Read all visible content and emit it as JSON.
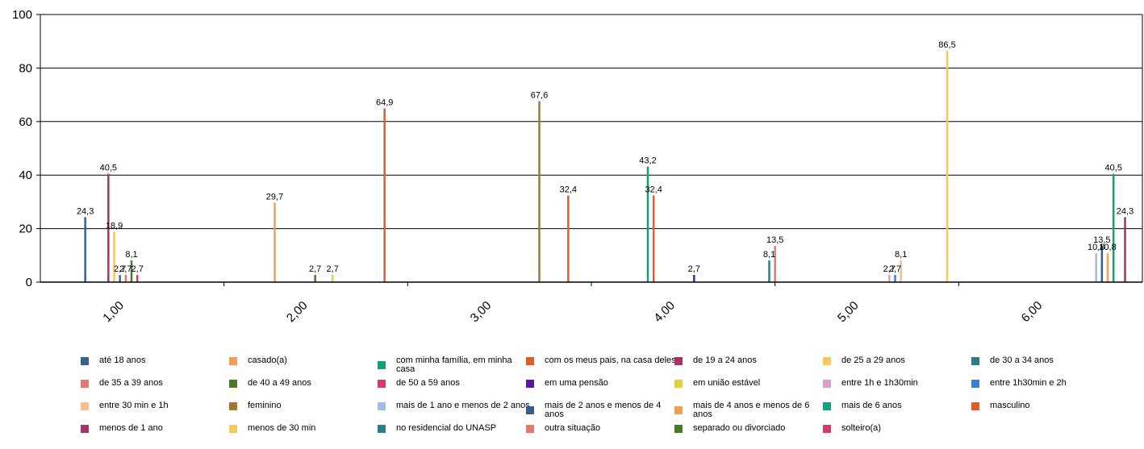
{
  "chart_data": {
    "type": "bar",
    "title": "",
    "xlabel": "",
    "ylabel": "",
    "ylim": [
      0,
      100
    ],
    "yticks": [
      "0",
      "20",
      "40",
      "60",
      "80",
      "100"
    ],
    "categories": [
      "1,00",
      "2,00",
      "3,00",
      "4,00",
      "5,00",
      "6,00"
    ],
    "legend_position": "bottom",
    "grid": "horizontal",
    "series": [
      {
        "name": "até 18 anos",
        "color": "#3a5f91",
        "values": [
          24.3,
          null,
          null,
          null,
          null,
          null
        ],
        "labels": [
          "24,3",
          null,
          null,
          null,
          null,
          null
        ]
      },
      {
        "name": "casado(a)",
        "color": "#f0a050",
        "values": [
          null,
          29.7,
          null,
          null,
          null,
          null
        ],
        "labels": [
          null,
          "29,7",
          null,
          null,
          null,
          null
        ]
      },
      {
        "name": "com minha família, em minha casa",
        "color": "#12a07a",
        "values": [
          null,
          null,
          null,
          43.2,
          null,
          null
        ],
        "labels": [
          null,
          null,
          null,
          "43,2",
          null,
          null
        ]
      },
      {
        "name": "com os meus pais, na casa deles",
        "color": "#e05c28",
        "values": [
          null,
          null,
          null,
          32.4,
          null,
          null
        ],
        "labels": [
          null,
          null,
          null,
          "32,4",
          null,
          null
        ]
      },
      {
        "name": "de 19 a 24 anos",
        "color": "#a83268",
        "values": [
          40.5,
          null,
          null,
          null,
          null,
          null
        ],
        "labels": [
          "40,5",
          null,
          null,
          null,
          null,
          null
        ]
      },
      {
        "name": "de 25 a 29 anos",
        "color": "#f7c85a",
        "values": [
          18.9,
          null,
          null,
          null,
          null,
          null
        ],
        "labels": [
          "18,9",
          null,
          null,
          null,
          null,
          null
        ]
      },
      {
        "name": "de 30 a 34 anos",
        "color": "#2d7a88",
        "values": [
          2.7,
          null,
          null,
          null,
          null,
          null
        ],
        "labels": [
          "2,7",
          null,
          null,
          null,
          null,
          null
        ]
      },
      {
        "name": "de 35 a 39 anos",
        "color": "#e07a70",
        "values": [
          2.7,
          null,
          null,
          null,
          null,
          null
        ],
        "labels": [
          "2,7",
          null,
          null,
          null,
          null,
          null
        ]
      },
      {
        "name": "de 40 a 49 anos",
        "color": "#4a7a28",
        "values": [
          8.1,
          2.7,
          null,
          null,
          null,
          null
        ],
        "labels": [
          "8,1",
          "2,7",
          null,
          null,
          null,
          null
        ]
      },
      {
        "name": "de 50 a 59 anos",
        "color": "#d63a70",
        "values": [
          2.7,
          null,
          null,
          null,
          null,
          null
        ],
        "labels": [
          "2,7",
          null,
          null,
          null,
          null,
          null
        ]
      },
      {
        "name": "em uma pensão",
        "color": "#5a1aa0",
        "values": [
          null,
          null,
          null,
          2.7,
          null,
          null
        ],
        "labels": [
          null,
          null,
          null,
          "2,7",
          null,
          null
        ]
      },
      {
        "name": "em união estável",
        "color": "#e0d040",
        "values": [
          null,
          2.7,
          null,
          null,
          null,
          null
        ],
        "labels": [
          null,
          "2,7",
          null,
          null,
          null,
          null
        ]
      },
      {
        "name": "entre 1h e 1h30min",
        "color": "#d8a0c8",
        "values": [
          null,
          null,
          null,
          null,
          2.7,
          null
        ],
        "labels": [
          null,
          null,
          null,
          null,
          "2,7",
          null
        ]
      },
      {
        "name": "entre 1h30min e 2h",
        "color": "#3a80d0",
        "values": [
          null,
          null,
          null,
          null,
          2.7,
          null
        ],
        "labels": [
          null,
          null,
          null,
          null,
          "2,7",
          null
        ]
      },
      {
        "name": "entre 30 min e 1h",
        "color": "#f0c090",
        "values": [
          null,
          null,
          null,
          null,
          8.1,
          null
        ],
        "labels": [
          null,
          null,
          null,
          null,
          "8,1",
          null
        ]
      },
      {
        "name": "feminino",
        "color": "#a07830",
        "values": [
          null,
          null,
          67.6,
          null,
          null,
          null
        ],
        "labels": [
          null,
          null,
          "67,6",
          null,
          null,
          null
        ]
      },
      {
        "name": "mais de 1 ano e menos de 2 anos",
        "color": "#a0bce0",
        "values": [
          null,
          null,
          null,
          null,
          null,
          10.8
        ],
        "labels": [
          null,
          null,
          null,
          null,
          null,
          "10,8"
        ]
      },
      {
        "name": "mais de 2 anos e menos de 4 anos",
        "color": "#3a5a90",
        "values": [
          null,
          null,
          null,
          null,
          null,
          13.5
        ],
        "labels": [
          null,
          null,
          null,
          null,
          null,
          "13,5"
        ]
      },
      {
        "name": "mais de 4 anos e menos de 6 anos",
        "color": "#f0a050",
        "values": [
          null,
          null,
          null,
          null,
          null,
          10.8
        ],
        "labels": [
          null,
          null,
          null,
          null,
          null,
          "10,8"
        ]
      },
      {
        "name": "mais de 6 anos",
        "color": "#12a07a",
        "values": [
          null,
          null,
          null,
          null,
          null,
          40.5
        ],
        "labels": [
          null,
          null,
          null,
          null,
          null,
          "40,5"
        ]
      },
      {
        "name": "masculino",
        "color": "#e05c28",
        "values": [
          null,
          64.9,
          32.4,
          null,
          null,
          null
        ],
        "labels": [
          null,
          "64,9",
          "32,4",
          null,
          null,
          null
        ]
      },
      {
        "name": "menos de 1 ano",
        "color": "#a83268",
        "values": [
          null,
          null,
          null,
          null,
          null,
          24.3
        ],
        "labels": [
          null,
          null,
          null,
          null,
          null,
          "24,3"
        ]
      },
      {
        "name": "menos de 30 min",
        "color": "#f7c85a",
        "values": [
          null,
          null,
          null,
          null,
          86.5,
          null
        ],
        "labels": [
          null,
          null,
          null,
          null,
          "86,5",
          null
        ]
      },
      {
        "name": "no residencial do UNASP",
        "color": "#2d7a88",
        "values": [
          null,
          null,
          null,
          8.1,
          null,
          null
        ],
        "labels": [
          null,
          null,
          null,
          "8,1",
          null,
          null
        ]
      },
      {
        "name": "outra situação",
        "color": "#e07a70",
        "values": [
          null,
          null,
          null,
          13.5,
          null,
          null
        ],
        "labels": [
          null,
          null,
          null,
          "13,5",
          null,
          null
        ]
      },
      {
        "name": "separado ou divorciado",
        "color": "#4a7a28",
        "values": [
          null,
          null,
          null,
          null,
          null,
          null
        ],
        "labels": [
          null,
          null,
          null,
          null,
          null,
          null
        ]
      },
      {
        "name": "solteiro(a)",
        "color": "#d63a70",
        "values": [
          null,
          null,
          null,
          null,
          null,
          null
        ],
        "labels": [
          null,
          null,
          null,
          null,
          null,
          null
        ]
      }
    ]
  }
}
